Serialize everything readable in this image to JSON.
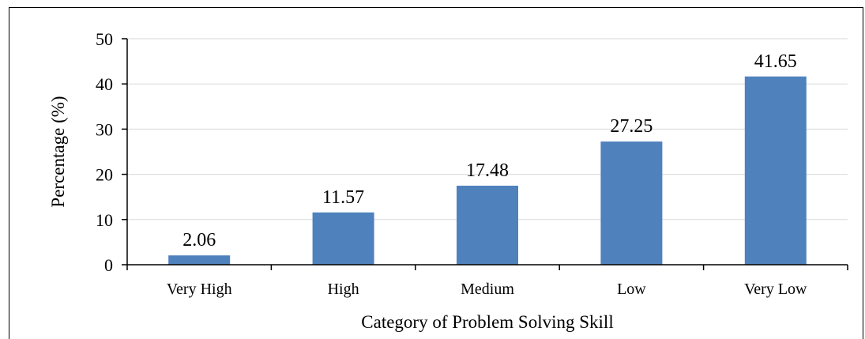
{
  "chart_data": {
    "type": "bar",
    "categories": [
      "Very High",
      "High",
      "Medium",
      "Low",
      "Very Low"
    ],
    "values": [
      2.06,
      11.57,
      17.48,
      27.25,
      41.65
    ],
    "data_labels": [
      "2.06",
      "11.57",
      "17.48",
      "27.25",
      "41.65"
    ],
    "title": "",
    "xlabel": "Category of Problem Solving Skill",
    "ylabel": "Percentage (%)",
    "ylim": [
      0,
      50
    ],
    "yticks": [
      "0",
      "10",
      "20",
      "30",
      "40",
      "50"
    ],
    "grid": true,
    "legend": "none",
    "bar_color": "#4f81bd"
  }
}
